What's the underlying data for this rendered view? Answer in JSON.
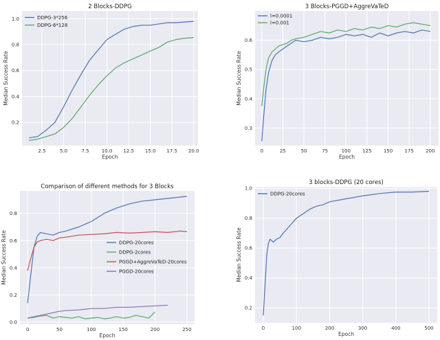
{
  "chart_data": [
    {
      "type": "line",
      "title": "2 Blocks-DDPG",
      "xlabel": "Epoch",
      "ylabel": "Median Success Rate",
      "xlim": [
        0.2,
        20.5
      ],
      "ylim": [
        0.02,
        1.06
      ],
      "xticks": [
        2.5,
        5.0,
        7.5,
        10.0,
        12.5,
        15.0,
        17.5,
        20.0
      ],
      "xtick_labels": [
        "2.5",
        "5.0",
        "7.5",
        "10.0",
        "12.5",
        "15.0",
        "17.5",
        "20.0"
      ],
      "yticks": [
        0.2,
        0.4,
        0.6,
        0.8,
        1.0
      ],
      "ytick_labels": [
        "0.2",
        "0.4",
        "0.6",
        "0.8",
        "1.0"
      ],
      "grid": true,
      "legend": "top-left",
      "series": [
        {
          "name": "DDPG-3*256",
          "color": "#4c72b0",
          "x": [
            1,
            2,
            3,
            4,
            5,
            6,
            7,
            8,
            9,
            10,
            11,
            12,
            13,
            14,
            15,
            16,
            17,
            18,
            19,
            20
          ],
          "y": [
            0.08,
            0.09,
            0.14,
            0.2,
            0.32,
            0.45,
            0.57,
            0.68,
            0.76,
            0.84,
            0.88,
            0.92,
            0.94,
            0.95,
            0.95,
            0.96,
            0.97,
            0.97,
            0.975,
            0.98
          ]
        },
        {
          "name": "DDPG-6*128",
          "color": "#55a868",
          "x": [
            1,
            2,
            3,
            4,
            5,
            6,
            7,
            8,
            9,
            10,
            11,
            12,
            13,
            14,
            15,
            16,
            17,
            18,
            19,
            20
          ],
          "y": [
            0.06,
            0.07,
            0.09,
            0.11,
            0.16,
            0.23,
            0.32,
            0.41,
            0.49,
            0.56,
            0.62,
            0.66,
            0.69,
            0.72,
            0.75,
            0.78,
            0.82,
            0.84,
            0.85,
            0.855
          ]
        }
      ]
    },
    {
      "type": "line",
      "title": "3 Blocks-PGGD+AggreVaTeD",
      "xlabel": "Epoch",
      "ylabel": "Median Success Rate",
      "xlim": [
        -8,
        210
      ],
      "ylim": [
        0.24,
        0.7
      ],
      "xticks": [
        0,
        25,
        50,
        75,
        100,
        125,
        150,
        175,
        200
      ],
      "xtick_labels": [
        "0",
        "25",
        "50",
        "75",
        "100",
        "125",
        "150",
        "175",
        "200"
      ],
      "yticks": [
        0.3,
        0.4,
        0.5,
        0.6
      ],
      "ytick_labels": [
        "0.3",
        "0.4",
        "0.5",
        "0.6"
      ],
      "grid": true,
      "legend": "top-left",
      "series": [
        {
          "name": "l=0.0001",
          "color": "#4c72b0",
          "x": [
            0,
            2,
            5,
            8,
            12,
            16,
            20,
            25,
            30,
            35,
            40,
            50,
            60,
            70,
            80,
            90,
            100,
            110,
            120,
            130,
            140,
            150,
            160,
            170,
            180,
            190,
            200
          ],
          "y": [
            0.255,
            0.33,
            0.43,
            0.49,
            0.53,
            0.55,
            0.56,
            0.57,
            0.58,
            0.59,
            0.6,
            0.595,
            0.6,
            0.61,
            0.605,
            0.61,
            0.62,
            0.615,
            0.62,
            0.61,
            0.625,
            0.615,
            0.625,
            0.63,
            0.625,
            0.635,
            0.63
          ]
        },
        {
          "name": "l=0.001",
          "color": "#55a868",
          "x": [
            0,
            2,
            5,
            8,
            12,
            16,
            20,
            25,
            30,
            35,
            40,
            50,
            60,
            70,
            80,
            90,
            100,
            110,
            120,
            130,
            140,
            150,
            160,
            170,
            180,
            190,
            200
          ],
          "y": [
            0.375,
            0.43,
            0.5,
            0.54,
            0.56,
            0.57,
            0.58,
            0.585,
            0.59,
            0.6,
            0.605,
            0.61,
            0.62,
            0.63,
            0.625,
            0.635,
            0.63,
            0.64,
            0.635,
            0.645,
            0.64,
            0.65,
            0.645,
            0.655,
            0.66,
            0.655,
            0.65
          ]
        }
      ]
    },
    {
      "type": "line",
      "title": "Comparison of different methods for 3 Blocks",
      "xlabel": "Epoch",
      "ylabel": "Median Success Rate",
      "xlim": [
        -12,
        262
      ],
      "ylim": [
        -0.015,
        0.965
      ],
      "xticks": [
        0,
        50,
        100,
        150,
        200,
        250
      ],
      "xtick_labels": [
        "0",
        "50",
        "100",
        "150",
        "200",
        "250"
      ],
      "yticks": [
        0.0,
        0.2,
        0.4,
        0.6,
        0.8
      ],
      "ytick_labels": [
        "0.0",
        "0.2",
        "0.4",
        "0.6",
        "0.8"
      ],
      "grid": true,
      "legend": "center-right",
      "series": [
        {
          "name": "DDPG-20cores",
          "color": "#4c72b0",
          "x": [
            0,
            5,
            10,
            15,
            20,
            30,
            40,
            50,
            60,
            80,
            100,
            120,
            140,
            160,
            180,
            200,
            220,
            240,
            250
          ],
          "y": [
            0.14,
            0.35,
            0.55,
            0.63,
            0.66,
            0.65,
            0.64,
            0.66,
            0.67,
            0.7,
            0.74,
            0.8,
            0.84,
            0.87,
            0.89,
            0.9,
            0.91,
            0.92,
            0.925
          ]
        },
        {
          "name": "DDPG-2cores",
          "color": "#55a868",
          "x": [
            0,
            10,
            20,
            30,
            40,
            50,
            60,
            70,
            80,
            90,
            100,
            110,
            120,
            130,
            140,
            150,
            160,
            170,
            180,
            190,
            200
          ],
          "y": [
            0.03,
            0.035,
            0.045,
            0.05,
            0.03,
            0.04,
            0.035,
            0.03,
            0.04,
            0.025,
            0.03,
            0.035,
            0.025,
            0.03,
            0.04,
            0.03,
            0.035,
            0.05,
            0.04,
            0.03,
            0.075
          ]
        },
        {
          "name": "PGGD+AggreVaTeD-20cores",
          "color": "#c44e52",
          "x": [
            0,
            5,
            10,
            15,
            20,
            30,
            40,
            50,
            60,
            80,
            100,
            120,
            140,
            160,
            180,
            200,
            220,
            240,
            250
          ],
          "y": [
            0.38,
            0.47,
            0.55,
            0.59,
            0.6,
            0.61,
            0.6,
            0.62,
            0.625,
            0.64,
            0.645,
            0.65,
            0.66,
            0.655,
            0.66,
            0.665,
            0.66,
            0.67,
            0.665
          ]
        },
        {
          "name": "PGGD-20cores",
          "color": "#8172b2",
          "x": [
            0,
            10,
            20,
            30,
            40,
            50,
            60,
            80,
            100,
            120,
            140,
            160,
            180,
            200,
            220
          ],
          "y": [
            0.03,
            0.04,
            0.05,
            0.06,
            0.07,
            0.08,
            0.085,
            0.09,
            0.1,
            0.1,
            0.11,
            0.11,
            0.115,
            0.12,
            0.125
          ]
        }
      ]
    },
    {
      "type": "line",
      "title": "3 blocks-DDPG (20 cores)",
      "xlabel": "Epoch",
      "ylabel": "Median Success Rate",
      "xlim": [
        -25,
        525
      ],
      "ylim": [
        0.1,
        1.01
      ],
      "xticks": [
        0,
        100,
        200,
        300,
        400,
        500
      ],
      "xtick_labels": [
        "0",
        "100",
        "200",
        "300",
        "400",
        "500"
      ],
      "yticks": [
        0.2,
        0.4,
        0.6,
        0.8,
        1.0
      ],
      "ytick_labels": [
        "0.2",
        "0.4",
        "0.6",
        "0.8",
        "1.0"
      ],
      "grid": true,
      "legend": "top-left",
      "series": [
        {
          "name": "DDPG-20cores",
          "color": "#4c72b0",
          "x": [
            0,
            5,
            10,
            15,
            20,
            25,
            30,
            40,
            50,
            60,
            80,
            100,
            120,
            140,
            160,
            180,
            200,
            250,
            300,
            350,
            400,
            450,
            500
          ],
          "y": [
            0.15,
            0.35,
            0.55,
            0.63,
            0.66,
            0.65,
            0.64,
            0.66,
            0.67,
            0.7,
            0.75,
            0.8,
            0.83,
            0.86,
            0.88,
            0.89,
            0.91,
            0.93,
            0.95,
            0.965,
            0.975,
            0.975,
            0.98
          ]
        }
      ]
    }
  ]
}
